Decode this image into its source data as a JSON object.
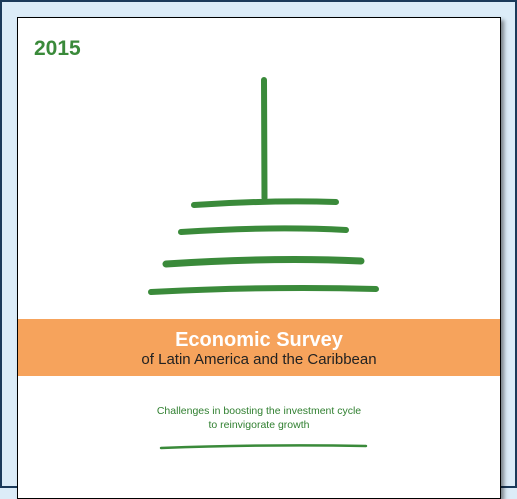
{
  "cover": {
    "year": "2015",
    "title": "Economic Survey",
    "subtitle": "of Latin America and the Caribbean",
    "tagline": [
      "Challenges in boosting the investment cycle",
      "to reinvigorate growth"
    ]
  }
}
